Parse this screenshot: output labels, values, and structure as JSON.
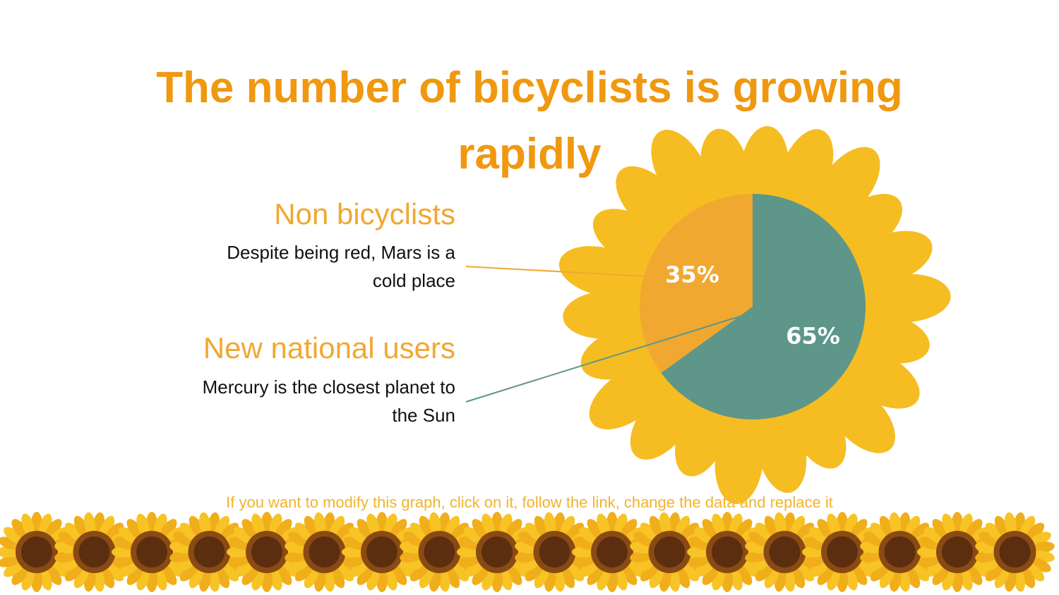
{
  "chart_data": {
    "type": "pie",
    "title": "The number of bicyclists is growing rapidly",
    "categories": [
      "Non bicyclists",
      "New national users"
    ],
    "values": [
      35,
      65
    ],
    "value_labels": [
      "35%",
      "65%"
    ],
    "colors": [
      "#F0A830",
      "#5E968A"
    ],
    "annotations": [
      "Despite being red, Mars is a cold place",
      "Mercury is the closest planet to the Sun"
    ],
    "footnote": "If you want to modify this graph, click on it, follow the link, change the data and replace it"
  }
}
